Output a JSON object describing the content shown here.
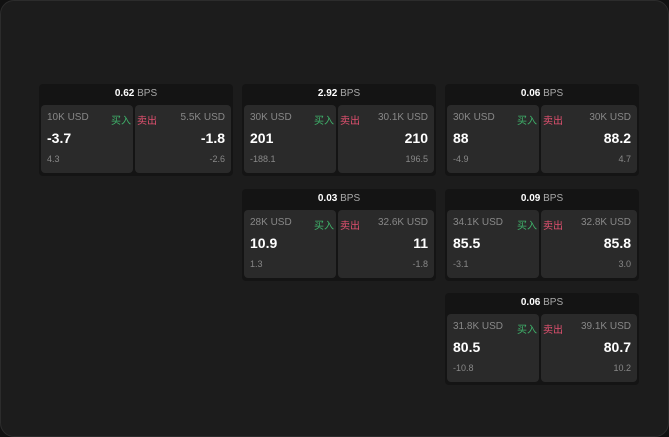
{
  "labels": {
    "buy": "买入",
    "sell": "卖出",
    "unit": "BPS"
  },
  "colors": {
    "buy": "#3fb36b",
    "sell": "#e0506f"
  },
  "cards": [
    {
      "spread": "0.62",
      "bid": {
        "qty": "10K USD",
        "price": "-3.7",
        "change": "4.3"
      },
      "ask": {
        "qty": "5.5K USD",
        "price": "-1.8",
        "change": "-2.6"
      }
    },
    {
      "spread": "2.92",
      "bid": {
        "qty": "30K USD",
        "price": "201",
        "change": "-188.1"
      },
      "ask": {
        "qty": "30.1K USD",
        "price": "210",
        "change": "196.5"
      }
    },
    {
      "spread": "0.06",
      "bid": {
        "qty": "30K USD",
        "price": "88",
        "change": "-4.9"
      },
      "ask": {
        "qty": "30K USD",
        "price": "88.2",
        "change": "4.7"
      }
    },
    {
      "spread": "0.03",
      "bid": {
        "qty": "28K USD",
        "price": "10.9",
        "change": "1.3"
      },
      "ask": {
        "qty": "32.6K USD",
        "price": "11",
        "change": "-1.8"
      }
    },
    {
      "spread": "0.09",
      "bid": {
        "qty": "34.1K USD",
        "price": "85.5",
        "change": "-3.1"
      },
      "ask": {
        "qty": "32.8K USD",
        "price": "85.8",
        "change": "3.0"
      }
    },
    {
      "spread": "0.06",
      "bid": {
        "qty": "31.8K USD",
        "price": "80.5",
        "change": "-10.8"
      },
      "ask": {
        "qty": "39.1K USD",
        "price": "80.7",
        "change": "10.2"
      }
    }
  ]
}
